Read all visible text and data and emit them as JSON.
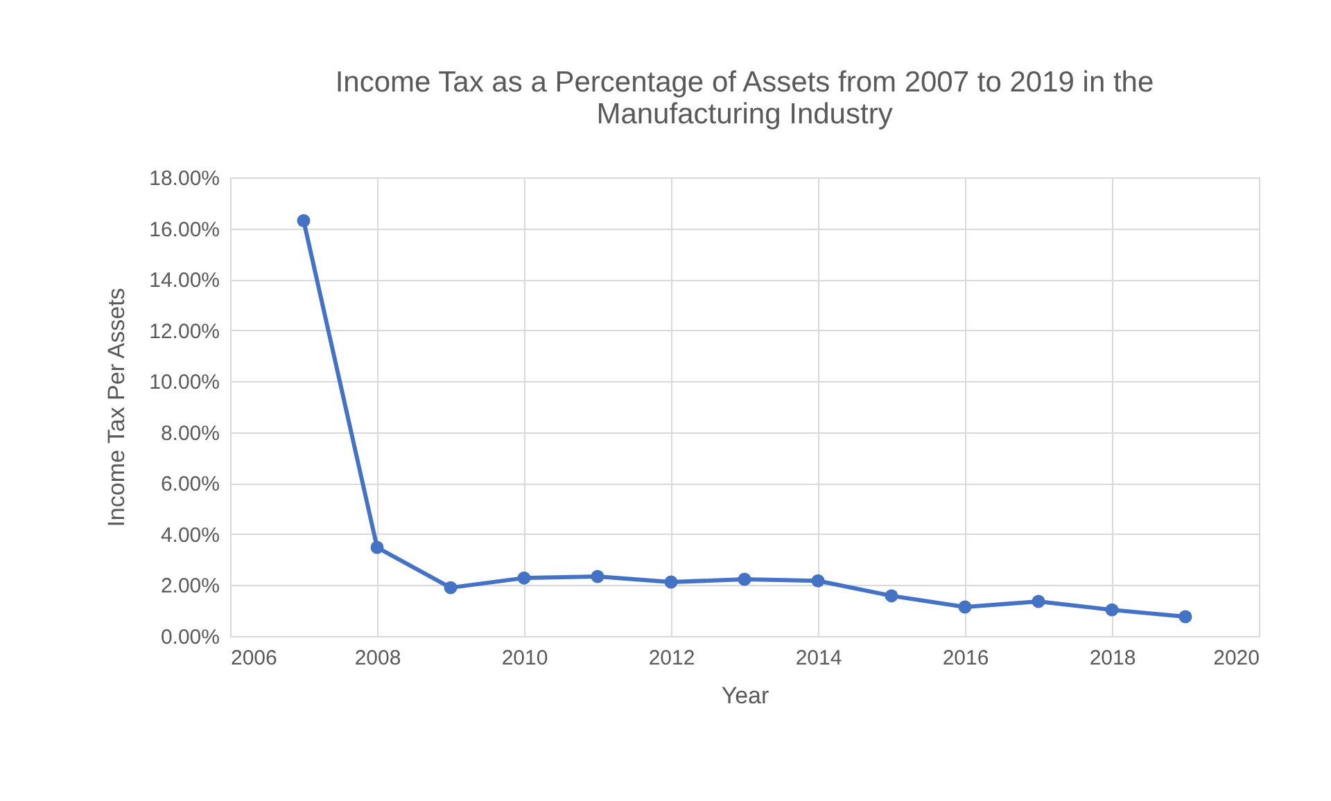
{
  "chart_data": {
    "type": "line",
    "title": "Income Tax as a Percentage of Assets from 2007 to 2019 in the Manufacturing Industry",
    "xlabel": "Year",
    "ylabel": "Income Tax Per Assets",
    "x": [
      2007,
      2008,
      2009,
      2010,
      2011,
      2012,
      2013,
      2014,
      2015,
      2016,
      2017,
      2018,
      2019
    ],
    "series": [
      {
        "color": "#4472c4",
        "values": [
          16.3,
          3.48,
          1.9,
          2.28,
          2.34,
          2.12,
          2.23,
          2.17,
          1.58,
          1.14,
          1.36,
          1.03,
          0.76
        ]
      }
    ],
    "xlim": [
      2006,
      2020
    ],
    "xticks": [
      2006,
      2008,
      2010,
      2012,
      2014,
      2016,
      2018,
      2020
    ],
    "ylim": [
      0,
      18
    ],
    "yticks": [
      {
        "value": 0,
        "label": "0.00%"
      },
      {
        "value": 2,
        "label": "2.00%"
      },
      {
        "value": 4,
        "label": "4.00%"
      },
      {
        "value": 6,
        "label": "6.00%"
      },
      {
        "value": 8,
        "label": "8.00%"
      },
      {
        "value": 10,
        "label": "10.00%"
      },
      {
        "value": 12,
        "label": "12.00%"
      },
      {
        "value": 14,
        "label": "14.00%"
      },
      {
        "value": 16,
        "label": "16.00%"
      },
      {
        "value": 18,
        "label": "18.00%"
      }
    ],
    "grid": true,
    "marker": "circle",
    "line_style": "solid"
  }
}
